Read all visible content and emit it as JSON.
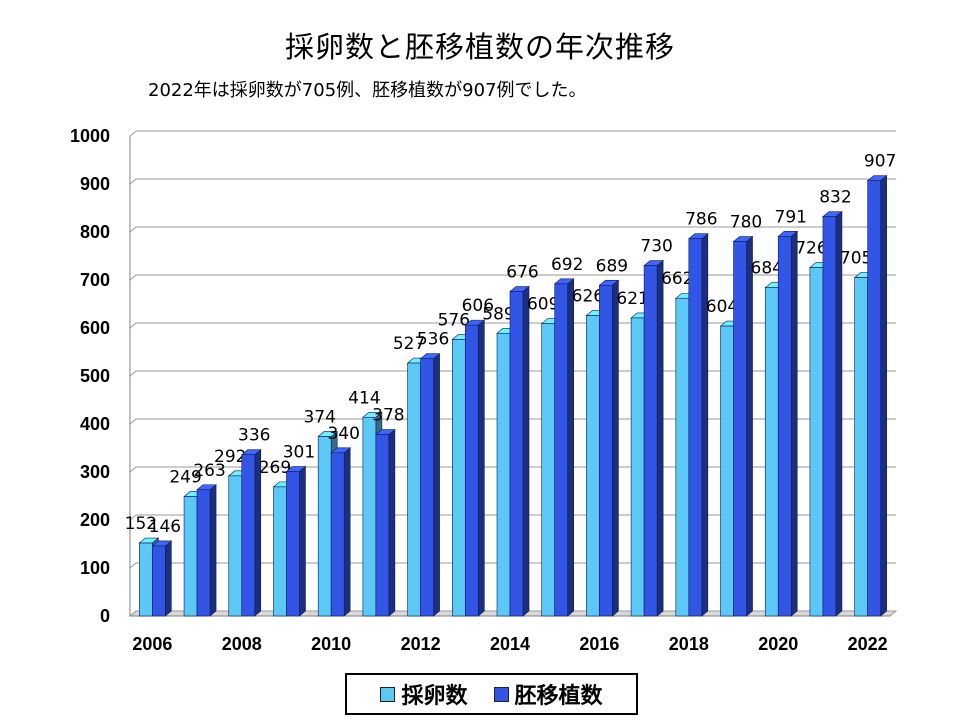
{
  "chart_data": {
    "type": "bar",
    "title": "採卵数と胚移植数の年次推移",
    "subtitle": "2022年は採卵数が705例、胚移植数が907例でした。",
    "categories": [
      "2006",
      "2007",
      "2008",
      "2009",
      "2010",
      "2011",
      "2012",
      "2013",
      "2014",
      "2015",
      "2016",
      "2017",
      "2018",
      "2019",
      "2020",
      "2021",
      "2022"
    ],
    "x_tick_labels": [
      "2006",
      "",
      "2008",
      "",
      "2010",
      "",
      "2012",
      "",
      "2014",
      "",
      "2016",
      "",
      "2018",
      "",
      "2020",
      "",
      "2022"
    ],
    "ylim": [
      0,
      1000
    ],
    "y_ticks": [
      0,
      100,
      200,
      300,
      400,
      500,
      600,
      700,
      800,
      900,
      1000
    ],
    "grid": true,
    "legend_position": "bottom",
    "series": [
      {
        "name": "採卵数",
        "color": "#5bc8f5",
        "values": [
          152,
          249,
          292,
          269,
          374,
          414,
          527,
          576,
          589,
          609,
          626,
          621,
          662,
          604,
          684,
          726,
          705
        ]
      },
      {
        "name": "胚移植数",
        "color": "#3355e6",
        "values": [
          146,
          263,
          336,
          301,
          340,
          378,
          536,
          606,
          676,
          692,
          689,
          730,
          786,
          780,
          791,
          832,
          907
        ]
      }
    ]
  }
}
